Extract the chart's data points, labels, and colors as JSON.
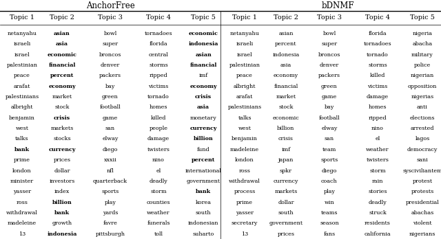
{
  "left_title": "AnchorFree",
  "right_title": "bDNMF",
  "col_headers": [
    "Topic 1",
    "Topic 2",
    "Topic 3",
    "Topic 4",
    "Topic 5"
  ],
  "anchorfree": [
    [
      "netanyahu",
      "israeli",
      "israel",
      "palestinian",
      "peace",
      "arafat",
      "palestinians",
      "albright",
      "benjamin",
      "west",
      "talks",
      "bank",
      "prime",
      "london",
      "minister",
      "yasser",
      "ross",
      "withdrawal",
      "madeleine",
      "13"
    ],
    [
      "asian",
      "asia",
      "economic",
      "financial",
      "percent",
      "economy",
      "market",
      "stock",
      "crisis",
      "markets",
      "stocks",
      "currency",
      "prices",
      "dollar",
      "investors",
      "index",
      "billion",
      "bank",
      "growth",
      "indonesia"
    ],
    [
      "bowl",
      "super",
      "broncos",
      "denver",
      "packers",
      "bay",
      "green",
      "football",
      "game",
      "san",
      "elway",
      "diego",
      "xxxii",
      "nfl",
      "quarterback",
      "sports",
      "play",
      "yards",
      "favre",
      "pittsburgh"
    ],
    [
      "tornadoes",
      "florida",
      "central",
      "storms",
      "ripped",
      "victims",
      "tornado",
      "homes",
      "killed",
      "people",
      "damage",
      "twisters",
      "nino",
      "el",
      "deadly",
      "storm",
      "counties",
      "weather",
      "funerals",
      "toll"
    ],
    [
      "economic",
      "indonesia",
      "asian",
      "financial",
      "imf",
      "economy",
      "crisis",
      "asia",
      "monetary",
      "currency",
      "billion",
      "fund",
      "percent",
      "international",
      "government",
      "bank",
      "korea",
      "south",
      "indonesian",
      "suharto"
    ]
  ],
  "anchorfree_bold": [
    [
      "bank"
    ],
    [
      "asian",
      "asia",
      "economic",
      "financial",
      "percent",
      "economy",
      "crisis",
      "currency",
      "billion",
      "bank",
      "indonesia"
    ],
    [],
    [],
    [
      "economic",
      "indonesia",
      "asian",
      "financial",
      "economy",
      "crisis",
      "asia",
      "currency",
      "billion",
      "bank",
      "percent"
    ]
  ],
  "bdnmf": [
    [
      "netanyahu",
      "israeli",
      "israel",
      "palestinian",
      "peace",
      "albright",
      "arafat",
      "palestinians",
      "talks",
      "west",
      "benjamin",
      "madeleine",
      "london",
      "ross",
      "withdrawal",
      "process",
      "prime",
      "yasser",
      "secretary",
      "13"
    ],
    [
      "asian",
      "percent",
      "indonesia",
      "asia",
      "economy",
      "financial",
      "market",
      "stock",
      "economic",
      "billion",
      "crisis",
      "imf",
      "japan",
      "spkr",
      "currency",
      "markets",
      "dollar",
      "south",
      "government",
      "prices"
    ],
    [
      "bowl",
      "super",
      "broncos",
      "denver",
      "packers",
      "green",
      "game",
      "bay",
      "football",
      "elway",
      "san",
      "team",
      "sports",
      "diego",
      "coach",
      "play",
      "win",
      "teams",
      "season",
      "fans"
    ],
    [
      "florida",
      "tornadoes",
      "tornado",
      "storms",
      "killed",
      "victims",
      "damage",
      "homes",
      "ripped",
      "nino",
      "el",
      "weather",
      "twisters",
      "storm",
      "rain",
      "stories",
      "deadly",
      "struck",
      "residents",
      "california"
    ],
    [
      "nigeria",
      "abacha",
      "military",
      "police",
      "nigerian",
      "opposition",
      "nigerias",
      "anti",
      "elections",
      "arrested",
      "lagos",
      "democracy",
      "sani",
      "sysciviliantem",
      "protest",
      "protests",
      "presidential",
      "abachas",
      "violent",
      "nigerians"
    ]
  ],
  "bdnmf_bold": [
    [],
    [],
    [],
    [],
    []
  ]
}
